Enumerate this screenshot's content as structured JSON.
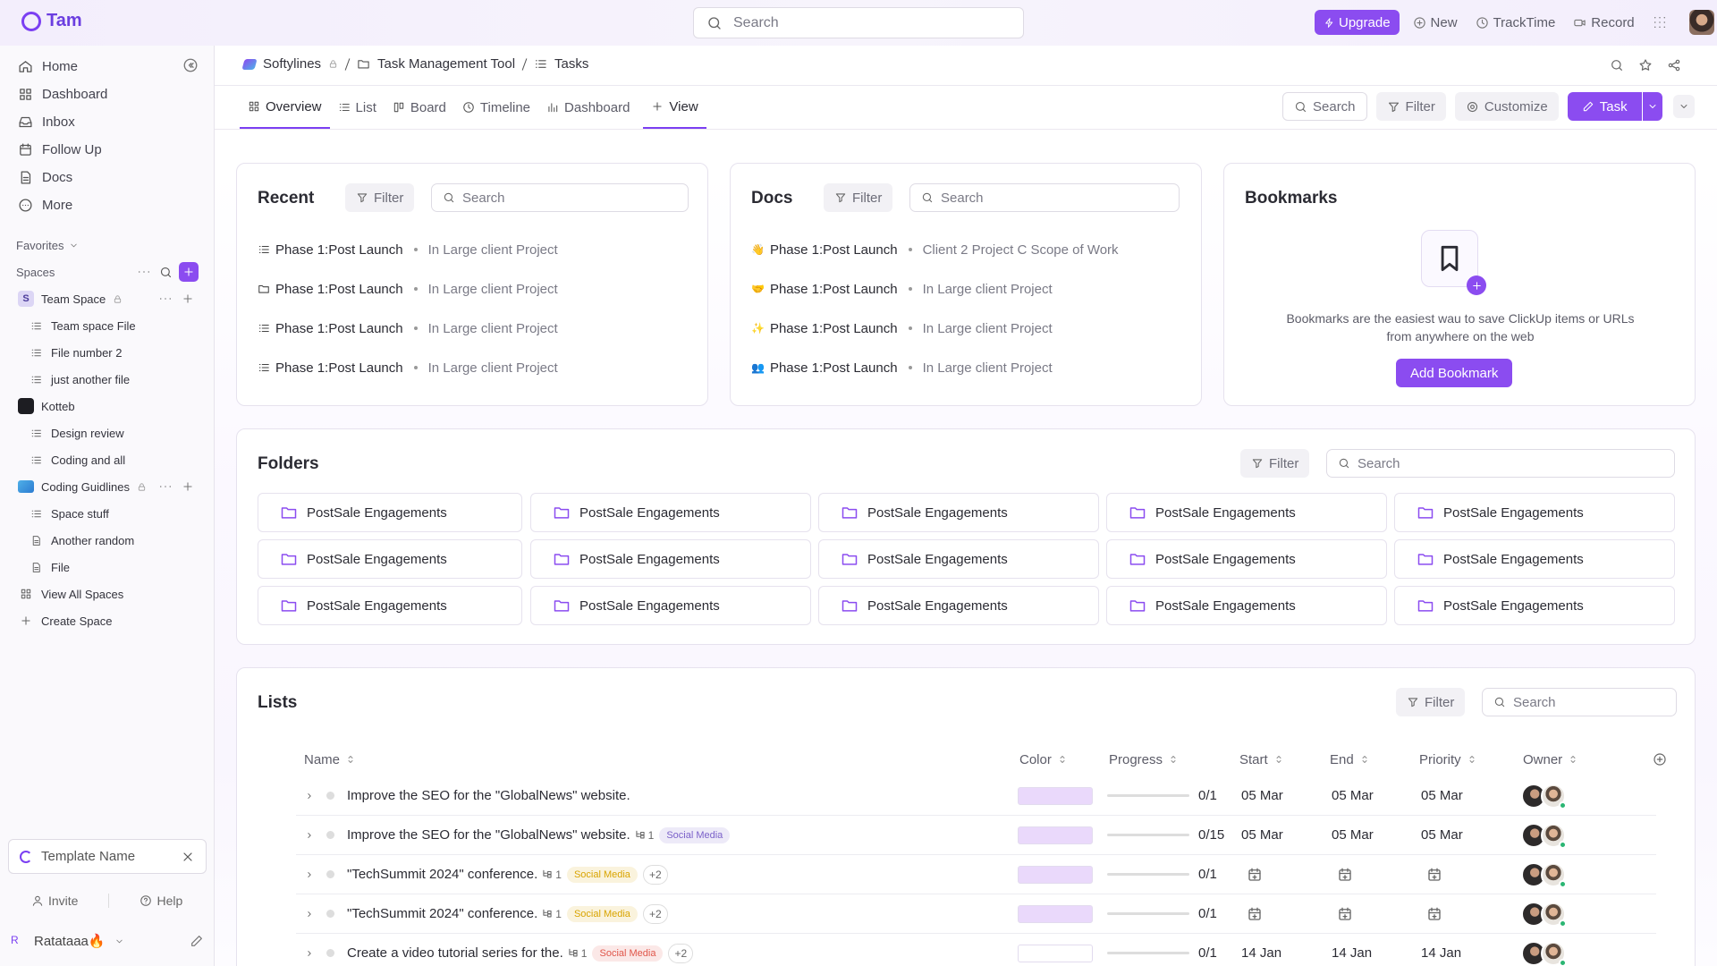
{
  "topbar": {
    "brand": "Tam",
    "search": "Search",
    "upgrade": "Upgrade",
    "actions": [
      "New",
      "TrackTime",
      "Record"
    ]
  },
  "sidebar": {
    "nav": [
      "Home",
      "Dashboard",
      "Inbox",
      "Follow Up",
      "Docs",
      "More"
    ],
    "favorites": "Favorites",
    "spaces": "Spaces",
    "tree": [
      {
        "badge": "S",
        "name": "Team Space",
        "children": [
          "Team space File",
          "File number 2",
          "just another file"
        ]
      },
      {
        "name": "Kotteb",
        "children": [
          "Design review",
          "Coding and all"
        ]
      },
      {
        "name": "Coding Guidlines",
        "children": [
          "Space stuff",
          "Another random",
          "File"
        ]
      }
    ],
    "links": [
      "View All Spaces",
      "Create Space"
    ],
    "template": "Template Name",
    "invite": "Invite",
    "help": "Help",
    "user": {
      "initial": "R",
      "name": "Ratataaa🔥"
    }
  },
  "breadcrumb": [
    "Softylines",
    "Task Management Tool",
    "Tasks"
  ],
  "tabs": [
    "Overview",
    "List",
    "Board",
    "Timeline",
    "Dashboard",
    "View"
  ],
  "toolbar": {
    "search": "Search",
    "filter": "Filter",
    "customize": "Customize",
    "task": "Task"
  },
  "recent": {
    "title": "Recent",
    "filter": "Filter",
    "search": "Search",
    "items": [
      {
        "name": "Phase 1:Post Launch",
        "location": "In Large client Project"
      },
      {
        "name": "Phase 1:Post Launch",
        "location": "In Large client Project"
      },
      {
        "name": "Phase 1:Post Launch",
        "location": "In Large client Project"
      },
      {
        "name": "Phase 1:Post Launch",
        "location": "In Large client Project"
      }
    ]
  },
  "docs": {
    "title": "Docs",
    "filter": "Filter",
    "search": "Search",
    "items": [
      {
        "icon": "👋",
        "name": "Phase 1:Post Launch",
        "location": "Client 2 Project C Scope of Work"
      },
      {
        "icon": "🤝",
        "name": "Phase 1:Post Launch",
        "location": "In Large client Project"
      },
      {
        "icon": "✨",
        "name": "Phase 1:Post Launch",
        "location": "In Large client Project"
      },
      {
        "icon": "👥",
        "name": "Phase 1:Post Launch",
        "location": "In Large client Project"
      }
    ]
  },
  "bookmarks": {
    "title": "Bookmarks",
    "text": "Bookmarks are the easiest wau to save ClickUp items or URLs from anywhere on the web",
    "button": "Add Bookmark"
  },
  "folders": {
    "title": "Folders",
    "filter": "Filter",
    "search": "Search",
    "items": [
      "PostSale Engagements",
      "PostSale Engagements",
      "PostSale Engagements",
      "PostSale Engagements",
      "PostSale Engagements",
      "PostSale Engagements",
      "PostSale Engagements",
      "PostSale Engagements",
      "PostSale Engagements",
      "PostSale Engagements",
      "PostSale Engagements",
      "PostSale Engagements",
      "PostSale Engagements",
      "PostSale Engagements",
      "PostSale Engagements"
    ]
  },
  "lists": {
    "title": "Lists",
    "filter": "Filter",
    "search": "Search",
    "columns": [
      "Name",
      "Color",
      "Progress",
      "Start",
      "End",
      "Priority",
      "Owner"
    ],
    "rows": [
      {
        "name": "Improve the SEO for the \"GlobalNews\" website.",
        "subtasks": null,
        "tag": null,
        "tag_color": null,
        "extra": null,
        "color": "#ead9fb",
        "progress": "0/1",
        "start": "05 Mar",
        "end": "05 Mar",
        "priority": "05 Mar"
      },
      {
        "name": "Improve the SEO for the \"GlobalNews\" website.",
        "subtasks": "1",
        "tag": "Social Media",
        "tag_color": "#7b61c9",
        "extra": null,
        "color": "#ead9fb",
        "progress": "0/15",
        "start": "05 Mar",
        "end": "05 Mar",
        "priority": "05 Mar"
      },
      {
        "name": "\"TechSummit 2024\" conference.",
        "subtasks": "1",
        "tag": "Social Media",
        "tag_color": "#d9a400",
        "extra": "+2",
        "color": "#ead9fb",
        "progress": "0/1",
        "start": null,
        "end": null,
        "priority": null
      },
      {
        "name": "\"TechSummit 2024\" conference.",
        "subtasks": "1",
        "tag": "Social Media",
        "tag_color": "#d9a400",
        "extra": "+2",
        "color": "#ead9fb",
        "progress": "0/1",
        "start": null,
        "end": null,
        "priority": null
      },
      {
        "name": "Create a video tutorial series for the.",
        "subtasks": "1",
        "tag": "Social Media",
        "tag_color": "#e0564a",
        "extra": "+2",
        "color": "#ffffff",
        "progress": "0/1",
        "start": "14 Jan",
        "end": "14 Jan",
        "priority": "14 Jan"
      }
    ]
  }
}
